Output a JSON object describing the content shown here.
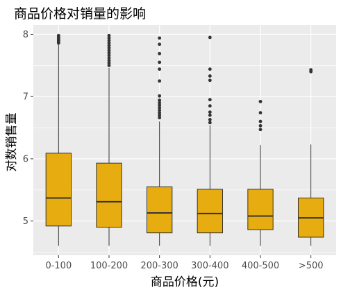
{
  "chart_data": {
    "type": "boxplot",
    "title": "商品价格对销量的影响",
    "xlabel": "商品价格(元)",
    "ylabel": "对数销售量",
    "ylim": [
      4.45,
      8.15
    ],
    "yticks": [
      5,
      6,
      7,
      8
    ],
    "grid": true,
    "box_color": "#E7AC10",
    "panel_color": "#EBEBEB",
    "categories": [
      "0-100",
      "100-200",
      "200-300",
      "300-400",
      "400-500",
      ">500"
    ],
    "boxes": [
      {
        "category": "0-100",
        "whisker_low": 4.6,
        "q1": 4.92,
        "median": 5.37,
        "q3": 6.09,
        "whisker_high": 7.84,
        "outliers": [
          7.86,
          7.88,
          7.9,
          7.92,
          7.94,
          7.96,
          7.98
        ]
      },
      {
        "category": "100-200",
        "whisker_low": 4.6,
        "q1": 4.9,
        "median": 5.31,
        "q3": 5.93,
        "whisker_high": 7.46,
        "outliers": [
          7.5,
          7.54,
          7.58,
          7.62,
          7.66,
          7.7,
          7.74,
          7.78,
          7.82,
          7.86,
          7.9,
          7.94,
          7.98
        ]
      },
      {
        "category": "200-300",
        "whisker_low": 4.6,
        "q1": 4.81,
        "median": 5.13,
        "q3": 5.55,
        "whisker_high": 6.6,
        "outliers": [
          6.66,
          6.7,
          6.74,
          6.78,
          6.82,
          6.86,
          6.9,
          6.94,
          7.01,
          7.25,
          7.44,
          7.55,
          7.69,
          7.84,
          7.94
        ]
      },
      {
        "category": "300-400",
        "whisker_low": 4.6,
        "q1": 4.81,
        "median": 5.12,
        "q3": 5.51,
        "whisker_high": 6.54,
        "outliers": [
          6.58,
          6.63,
          6.7,
          6.75,
          6.85,
          6.95,
          7.26,
          7.33,
          7.44,
          7.95
        ]
      },
      {
        "category": "400-500",
        "whisker_low": 4.6,
        "q1": 4.86,
        "median": 5.08,
        "q3": 5.51,
        "whisker_high": 6.22,
        "outliers": [
          6.47,
          6.53,
          6.6,
          6.74,
          6.92
        ]
      },
      {
        "category": ">500",
        "whisker_low": 4.6,
        "q1": 4.74,
        "median": 5.05,
        "q3": 5.37,
        "whisker_high": 6.23,
        "outliers": [
          7.4,
          7.43
        ]
      }
    ]
  }
}
